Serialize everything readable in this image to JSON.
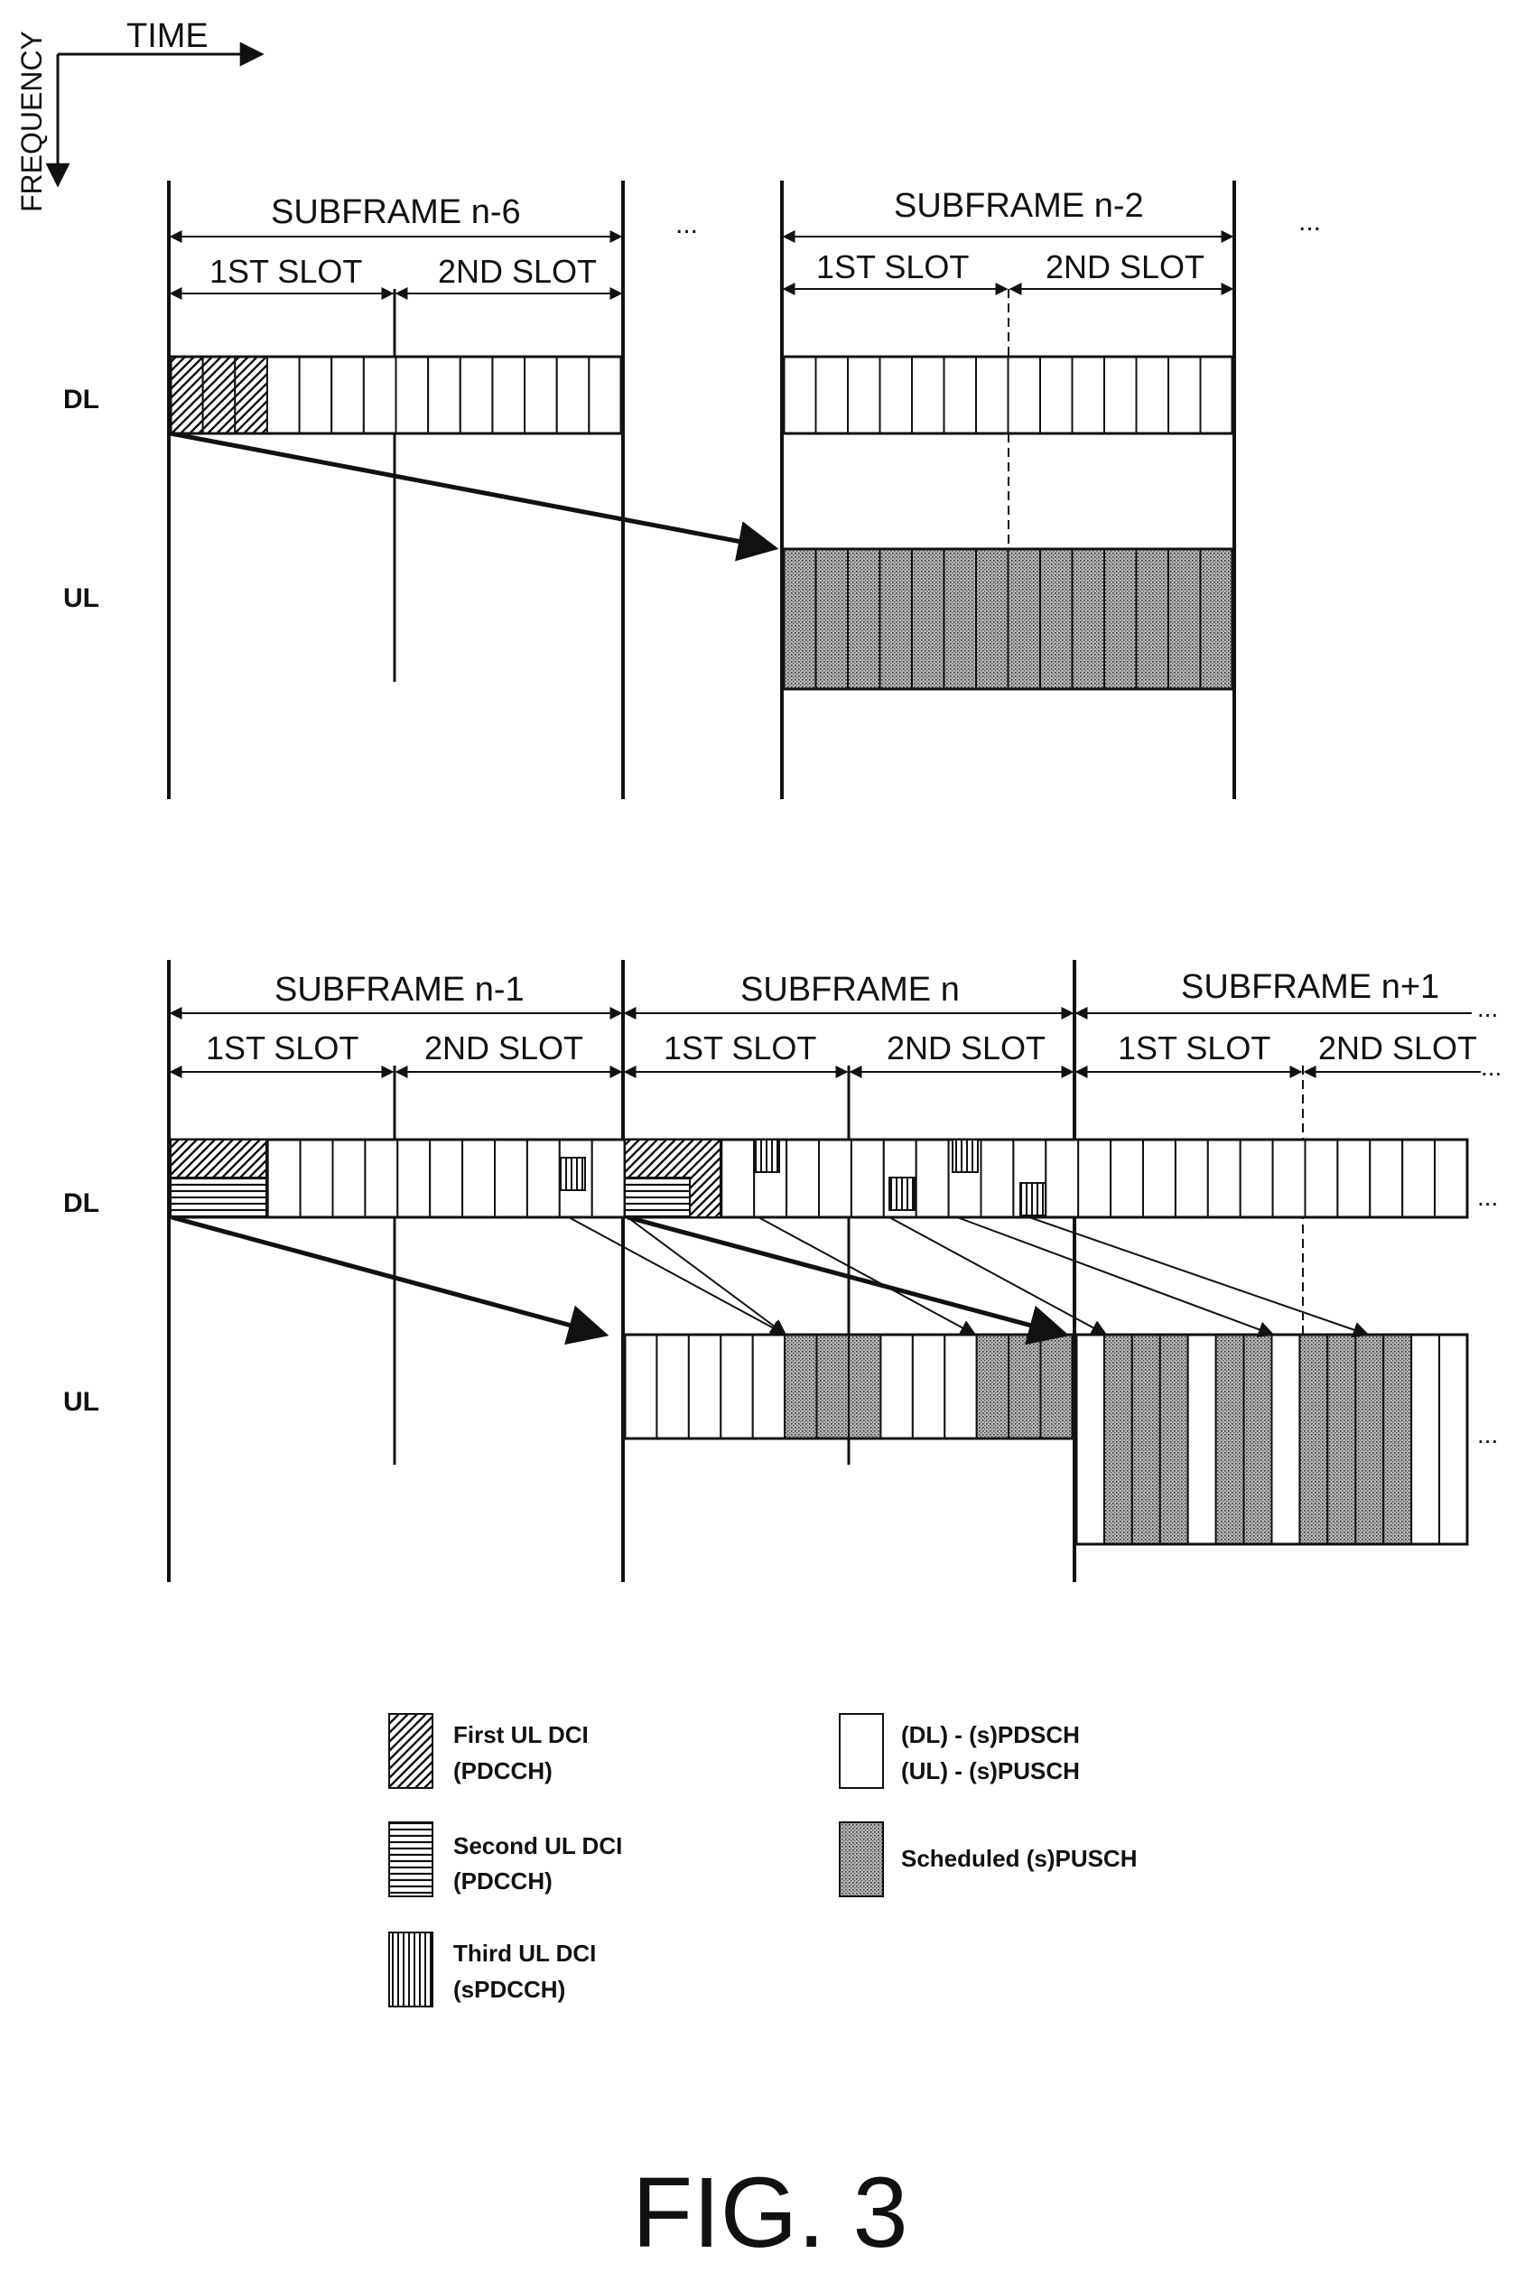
{
  "axes": {
    "time": "TIME",
    "frequency": "FREQUENCY"
  },
  "rows": {
    "dl": "DL",
    "ul": "UL"
  },
  "top": {
    "subframe_a": "SUBFRAME n-6",
    "subframe_b": "SUBFRAME n-2",
    "slot1_a": "1ST SLOT",
    "slot2_a": "2ND SLOT",
    "slot1_b": "1ST SLOT",
    "slot2_b": "2ND SLOT",
    "dots_a": "...",
    "dots_b": "..."
  },
  "bottom": {
    "subframe_a": "SUBFRAME n-1",
    "subframe_b": "SUBFRAME n",
    "subframe_c": "SUBFRAME n+1",
    "slot1_a": "1ST SLOT",
    "slot2_a": "2ND SLOT",
    "slot1_b": "1ST SLOT",
    "slot2_b": "2ND SLOT",
    "slot1_c": "1ST SLOT",
    "slot2_c": "2ND SLOT",
    "dots_sub": "...",
    "dots_slot": "...",
    "dots_dl": "...",
    "dots_ul": "..."
  },
  "legend": {
    "first_l1": "First UL DCI",
    "first_l2": "(PDCCH)",
    "second_l1": "Second UL DCI",
    "second_l2": "(PDCCH)",
    "third_l1": "Third UL DCI",
    "third_l2": "(sPDCCH)",
    "data_l1": "(DL) - (s)PDSCH",
    "data_l2": "(UL) - (s)PUSCH",
    "sched": "Scheduled (s)PUSCH"
  },
  "figure_title": "FIG. 3"
}
